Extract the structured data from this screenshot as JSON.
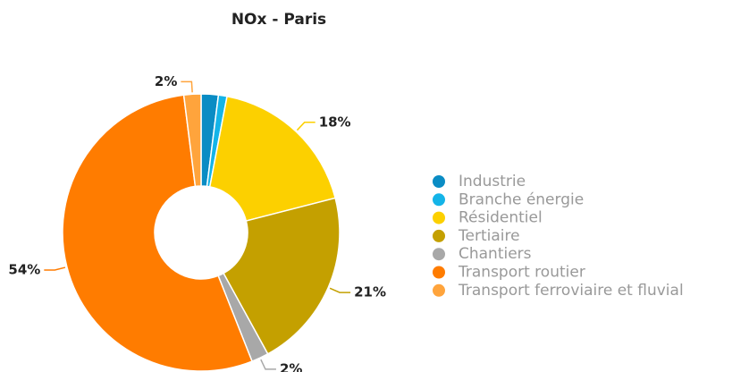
{
  "chart_data": {
    "type": "donut",
    "title": "NOx - Paris",
    "categories": [
      "Industrie",
      "Branche énergie",
      "Résidentiel",
      "Tertiaire",
      "Chantiers",
      "Transport routier",
      "Transport ferroviaire et fluvial"
    ],
    "values": [
      2,
      1,
      18,
      21,
      2,
      54,
      2
    ],
    "value_labels": [
      null,
      null,
      "18%",
      "21%",
      "2%",
      "54%",
      "2%"
    ],
    "colors": [
      "#0a8cc4",
      "#14b4e8",
      "#fcd000",
      "#c4a000",
      "#a8a8a8",
      "#ff7c00",
      "#ffa43c"
    ],
    "legend": "right"
  }
}
